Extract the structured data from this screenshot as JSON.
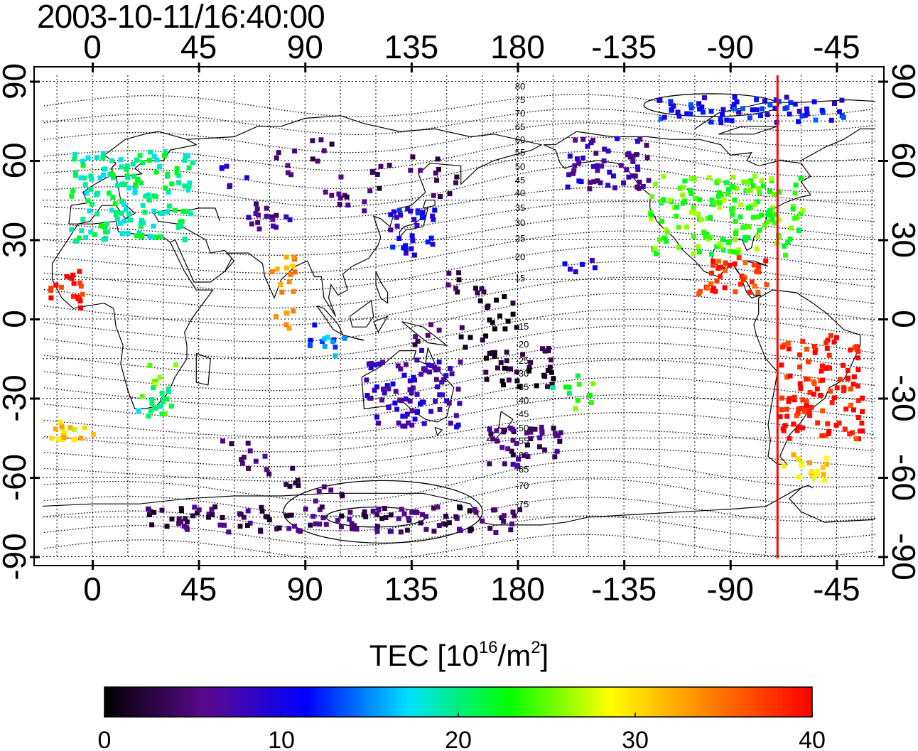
{
  "title": "2003-10-11/16:40:00",
  "map": {
    "lon_ticks_top": [
      "0",
      "45",
      "90",
      "135",
      "180",
      "-135",
      "-90",
      "-45"
    ],
    "lon_ticks_bottom": [
      "0",
      "45",
      "90",
      "135",
      "180",
      "-135",
      "-90",
      "-45"
    ],
    "lat_ticks": [
      "90",
      "60",
      "30",
      "0",
      "-30",
      "-60",
      "-90"
    ],
    "tick_lons": [
      0,
      45,
      90,
      135,
      180,
      225,
      270,
      315
    ],
    "tick_lats": [
      90,
      60,
      30,
      0,
      -30,
      -60,
      -90
    ],
    "lon_range": [
      -24,
      337
    ],
    "lat_range": [
      -90,
      90
    ],
    "grid": true,
    "terminator_lon": 290,
    "terminator_color": "#ff0000",
    "contour_labels_north": [
      "80",
      "75",
      "70",
      "65",
      "60",
      "55",
      "50",
      "45",
      "40",
      "35",
      "30",
      "25",
      "20",
      "15"
    ],
    "contour_labels_south": [
      "-15",
      "-20",
      "-25",
      "-30",
      "-35",
      "-40",
      "-45",
      "-50",
      "-55",
      "-60",
      "-65",
      "-70",
      "-75"
    ]
  },
  "colorbar": {
    "title_main": "TEC  [10",
    "title_exp1": "16",
    "title_mid": "/m",
    "title_exp2": "2",
    "title_end": "]",
    "ticks": [
      "0",
      "10",
      "20",
      "30",
      "40"
    ],
    "range": [
      0,
      40
    ],
    "colors": [
      "#000000",
      "#5a0a8c",
      "#0000ff",
      "#00e0ff",
      "#00ff00",
      "#ffff00",
      "#ff7f00",
      "#ff0000"
    ]
  },
  "chart_data": {
    "type": "heatmap",
    "title": "2003-10-11/16:40:00",
    "colorbar_label": "TEC [10^16/m^2]",
    "value_range": [
      0,
      40
    ],
    "regions": [
      {
        "lon": [
          -10,
          42
        ],
        "lat": [
          30,
          65
        ],
        "tec": 20
      },
      {
        "lon": [
          -15,
          0
        ],
        "lat": [
          -45,
          -40
        ],
        "tec": 30
      },
      {
        "lon": [
          20,
          33
        ],
        "lat": [
          -37,
          -25
        ],
        "tec": 22
      },
      {
        "lon": [
          -20,
          -5
        ],
        "lat": [
          5,
          20
        ],
        "tec": 39
      },
      {
        "lon": [
          75,
          85
        ],
        "lat": [
          10,
          25
        ],
        "tec": 33
      },
      {
        "lon": [
          65,
          85
        ],
        "lat": [
          35,
          45
        ],
        "tec": 6
      },
      {
        "lon": [
          125,
          145
        ],
        "lat": [
          25,
          45
        ],
        "tec": 10
      },
      {
        "lon": [
          115,
          155
        ],
        "lat": [
          -40,
          -15
        ],
        "tec": 8
      },
      {
        "lon": [
          165,
          195
        ],
        "lat": [
          -25,
          -10
        ],
        "tec": 1
      },
      {
        "lon": [
          165,
          200
        ],
        "lat": [
          -55,
          -40
        ],
        "tec": 5
      },
      {
        "lon": [
          200,
          235
        ],
        "lat": [
          50,
          70
        ],
        "tec": 7
      },
      {
        "lon": [
          235,
          300
        ],
        "lat": [
          25,
          55
        ],
        "tec": 24
      },
      {
        "lon": [
          255,
          285
        ],
        "lat": [
          10,
          25
        ],
        "tec": 38
      },
      {
        "lon": [
          290,
          325
        ],
        "lat": [
          -45,
          -5
        ],
        "tec": 39
      },
      {
        "lon": [
          290,
          310
        ],
        "lat": [
          -60,
          -50
        ],
        "tec": 30
      },
      {
        "lon": [
          235,
          320
        ],
        "lat": [
          75,
          85
        ],
        "tec": 11
      },
      {
        "lon": [
          20,
          180
        ],
        "lat": [
          -80,
          -70
        ],
        "tec": 4
      }
    ]
  }
}
